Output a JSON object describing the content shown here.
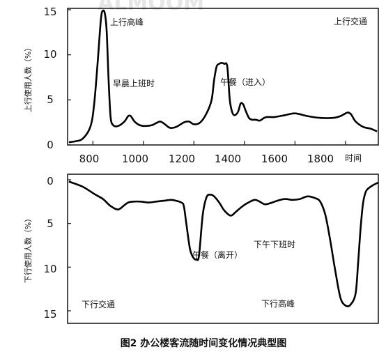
{
  "chart_data": [
    {
      "type": "line",
      "title": "",
      "xlabel": "时间",
      "ylabel": "上行使用人数（%）",
      "xlim": [
        700,
        1930
      ],
      "ylim": [
        0,
        15
      ],
      "x_ticks": [
        800,
        1000,
        1200,
        1400,
        1600,
        1800
      ],
      "y_ticks": [
        0,
        5,
        10,
        15
      ],
      "annotations": [
        "上行高峰",
        "早晨上班时",
        "午餐（进入）",
        "上行交通"
      ],
      "series": [
        {
          "x": [
            705,
            730,
            760,
            790,
            805,
            820,
            832,
            840,
            848,
            855,
            862,
            870,
            880,
            900,
            925,
            940,
            950,
            965,
            985,
            1005,
            1035,
            1065,
            1085,
            1105,
            1130,
            1160,
            1180,
            1200,
            1225,
            1250,
            1270,
            1280,
            1290,
            1300,
            1310,
            1320,
            1332,
            1342,
            1352,
            1362,
            1375,
            1385,
            1395,
            1405,
            1418,
            1430,
            1445,
            1460,
            1478,
            1490,
            1520,
            1560,
            1600,
            1650,
            1700,
            1750,
            1780,
            1800,
            1810,
            1822,
            1840,
            1870,
            1900,
            1925
          ],
          "y": [
            0.3,
            0.4,
            0.7,
            2.0,
            4.5,
            9.5,
            14.0,
            14.9,
            14.5,
            12.5,
            7.5,
            3.2,
            2.2,
            2.1,
            2.6,
            3.2,
            3.2,
            2.6,
            2.2,
            2.1,
            2.2,
            2.6,
            2.3,
            1.9,
            2.0,
            2.5,
            2.6,
            2.3,
            2.5,
            3.5,
            5.0,
            7.2,
            8.7,
            9.0,
            9.1,
            9.0,
            8.7,
            5.0,
            3.6,
            3.3,
            3.7,
            4.6,
            4.5,
            3.8,
            3.0,
            2.8,
            2.8,
            2.7,
            3.0,
            3.1,
            3.1,
            3.3,
            3.5,
            3.2,
            3.0,
            3.0,
            3.2,
            3.5,
            3.6,
            3.4,
            2.6,
            2.0,
            1.8,
            1.5
          ]
        }
      ]
    },
    {
      "type": "line",
      "title": "",
      "xlabel": "",
      "ylabel": "下行使用人数（%）",
      "xlim": [
        700,
        1930
      ],
      "ylim": [
        15,
        0
      ],
      "y_ticks": [
        0,
        5,
        10,
        15
      ],
      "annotations": [
        "午餐（离开）",
        "下午下班时",
        "下行交通",
        "下行高峰"
      ],
      "series": [
        {
          "x": [
            705,
            760,
            810,
            840,
            870,
            900,
            925,
            940,
            960,
            990,
            1020,
            1050,
            1080,
            1110,
            1130,
            1150,
            1160,
            1170,
            1185,
            1200,
            1210,
            1220,
            1235,
            1250,
            1265,
            1280,
            1300,
            1320,
            1345,
            1365,
            1385,
            1410,
            1440,
            1460,
            1480,
            1500,
            1530,
            1560,
            1590,
            1620,
            1650,
            1680,
            1700,
            1720,
            1740,
            1760,
            1780,
            1800,
            1820,
            1840,
            1850,
            1860,
            1870,
            1880,
            1890,
            1910,
            1930
          ],
          "y": [
            0.2,
            0.8,
            1.7,
            2.2,
            3.0,
            3.4,
            2.9,
            2.6,
            2.5,
            2.5,
            2.6,
            2.5,
            2.4,
            2.3,
            2.4,
            2.6,
            3.0,
            5.0,
            8.0,
            9.0,
            9.1,
            8.7,
            4.0,
            2.0,
            1.7,
            1.9,
            2.6,
            3.5,
            4.1,
            3.7,
            3.2,
            2.7,
            2.3,
            2.5,
            2.8,
            2.7,
            2.4,
            2.2,
            2.3,
            2.2,
            1.9,
            2.1,
            2.5,
            4.0,
            7.0,
            10.5,
            13.5,
            14.4,
            14.3,
            13.0,
            9.5,
            5.5,
            2.6,
            1.4,
            1.0,
            0.6,
            0.3
          ]
        }
      ]
    }
  ],
  "caption": "图2 办公楼客流随时间变化情况典型图",
  "watermark": "ALMOOM"
}
